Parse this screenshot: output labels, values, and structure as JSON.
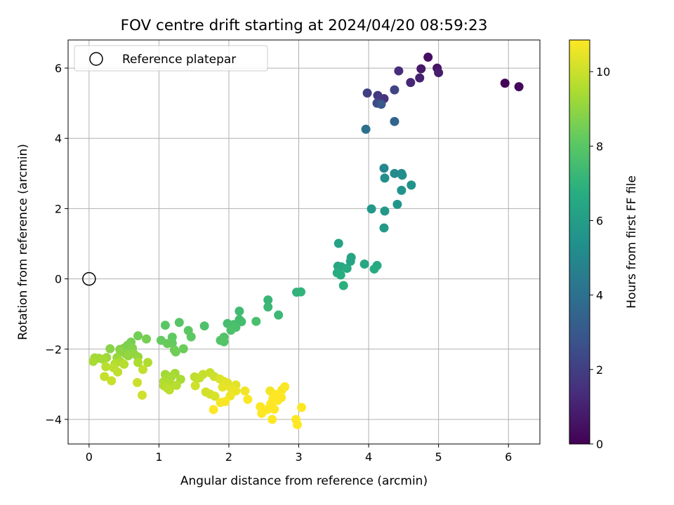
{
  "chart_data": {
    "type": "scatter",
    "title": "FOV centre drift starting at 2024/04/20 08:59:23",
    "xlabel": "Angular distance from reference (arcmin)",
    "ylabel": "Rotation from reference (arcmin)",
    "xlim": [
      -0.3,
      6.45
    ],
    "ylim": [
      -4.7,
      6.8
    ],
    "xticks": [
      0,
      1,
      2,
      3,
      4,
      5,
      6
    ],
    "yticks": [
      -4,
      -2,
      0,
      2,
      4,
      6
    ],
    "grid": true,
    "legend": {
      "location": "upper-left",
      "entries": [
        {
          "label": "Reference platepar",
          "marker": "open-circle"
        }
      ]
    },
    "reference_point": {
      "x": 0,
      "y": 0
    },
    "colorbar": {
      "label": "Hours from first FF file",
      "range": [
        0,
        10.85
      ],
      "ticks": [
        0,
        2,
        4,
        6,
        8,
        10
      ],
      "colormap": "viridis"
    },
    "points": [
      [
        5.95,
        5.57,
        0.1
      ],
      [
        6.15,
        5.47,
        0.25
      ],
      [
        4.85,
        6.31,
        0.45
      ],
      [
        4.98,
        6.0,
        0.6
      ],
      [
        4.75,
        5.98,
        0.75
      ],
      [
        5.0,
        5.87,
        0.9
      ],
      [
        4.73,
        5.72,
        1.05
      ],
      [
        4.6,
        5.59,
        1.2
      ],
      [
        4.43,
        5.92,
        1.4
      ],
      [
        4.22,
        5.13,
        1.6
      ],
      [
        4.13,
        5.22,
        1.8
      ],
      [
        3.98,
        5.29,
        2.0
      ],
      [
        4.37,
        5.38,
        2.2
      ],
      [
        4.12,
        5.0,
        2.4
      ],
      [
        4.18,
        4.97,
        3.0
      ],
      [
        4.37,
        4.48,
        3.5
      ],
      [
        3.96,
        4.26,
        4.0
      ],
      [
        4.22,
        3.15,
        5.0
      ],
      [
        4.37,
        3.0,
        5.1
      ],
      [
        4.47,
        3.0,
        5.2
      ],
      [
        4.48,
        2.95,
        5.3
      ],
      [
        4.23,
        2.87,
        5.4
      ],
      [
        4.61,
        2.67,
        5.5
      ],
      [
        4.47,
        2.52,
        5.55
      ],
      [
        4.41,
        2.12,
        5.6
      ],
      [
        4.04,
        1.99,
        5.7
      ],
      [
        4.23,
        1.93,
        5.75
      ],
      [
        4.22,
        1.45,
        5.85
      ],
      [
        3.57,
        1.01,
        6.2
      ],
      [
        3.75,
        0.61,
        6.3
      ],
      [
        3.74,
        0.5,
        6.35
      ],
      [
        3.94,
        0.42,
        6.4
      ],
      [
        3.56,
        0.36,
        6.45
      ],
      [
        3.61,
        0.34,
        6.5
      ],
      [
        4.12,
        0.38,
        6.55
      ],
      [
        3.69,
        0.3,
        6.6
      ],
      [
        4.08,
        0.28,
        6.65
      ],
      [
        3.55,
        0.17,
        6.7
      ],
      [
        3.6,
        0.11,
        6.75
      ],
      [
        3.64,
        -0.19,
        6.85
      ],
      [
        2.97,
        -0.38,
        7.0
      ],
      [
        3.03,
        -0.37,
        7.05
      ],
      [
        2.56,
        -0.6,
        7.2
      ],
      [
        2.56,
        -0.8,
        7.25
      ],
      [
        2.71,
        -1.03,
        7.3
      ],
      [
        2.15,
        -0.92,
        7.4
      ],
      [
        2.15,
        -1.16,
        7.45
      ],
      [
        2.18,
        -1.22,
        7.5
      ],
      [
        1.98,
        -1.27,
        7.55
      ],
      [
        2.07,
        -1.3,
        7.6
      ],
      [
        2.39,
        -1.21,
        7.62
      ],
      [
        2.1,
        -1.38,
        7.65
      ],
      [
        2.03,
        -1.46,
        7.7
      ],
      [
        1.65,
        -1.34,
        7.75
      ],
      [
        1.93,
        -1.66,
        7.8
      ],
      [
        1.88,
        -1.75,
        7.85
      ],
      [
        1.93,
        -1.79,
        7.9
      ],
      [
        1.29,
        -1.24,
        7.95
      ],
      [
        1.09,
        -1.32,
        8.0
      ],
      [
        1.42,
        -1.47,
        8.05
      ],
      [
        1.46,
        -1.65,
        8.1
      ],
      [
        1.19,
        -1.66,
        8.15
      ],
      [
        1.19,
        -1.83,
        8.2
      ],
      [
        1.03,
        -1.75,
        8.25
      ],
      [
        1.12,
        -1.84,
        8.3
      ],
      [
        1.35,
        -1.99,
        8.35
      ],
      [
        1.22,
        -2.02,
        8.4
      ],
      [
        1.24,
        -2.08,
        8.45
      ],
      [
        0.7,
        -1.62,
        8.5
      ],
      [
        0.82,
        -1.71,
        8.55
      ],
      [
        0.6,
        -1.8,
        8.6
      ],
      [
        0.55,
        -1.89,
        8.65
      ],
      [
        0.5,
        -1.97,
        8.7
      ],
      [
        0.62,
        -1.97,
        8.75
      ],
      [
        0.44,
        -2.01,
        8.8
      ],
      [
        0.3,
        -1.99,
        8.85
      ],
      [
        0.45,
        -2.07,
        8.9
      ],
      [
        0.52,
        -2.13,
        8.95
      ],
      [
        0.64,
        -2.13,
        9.0
      ],
      [
        0.56,
        -2.19,
        9.05
      ],
      [
        0.7,
        -2.22,
        9.1
      ],
      [
        0.4,
        -2.24,
        9.15
      ],
      [
        0.25,
        -2.24,
        9.2
      ],
      [
        0.14,
        -2.26,
        9.25
      ],
      [
        0.08,
        -2.25,
        9.3
      ],
      [
        0.2,
        -2.29,
        9.35
      ],
      [
        0.06,
        -2.35,
        9.4
      ],
      [
        0.45,
        -2.36,
        9.45
      ],
      [
        0.7,
        -2.38,
        9.5
      ],
      [
        0.84,
        -2.38,
        9.55
      ],
      [
        0.37,
        -2.42,
        9.6
      ],
      [
        0.5,
        -2.43,
        9.65
      ],
      [
        0.24,
        -2.5,
        9.7
      ],
      [
        0.35,
        -2.53,
        9.75
      ],
      [
        0.41,
        -2.65,
        9.8
      ],
      [
        0.77,
        -2.58,
        9.85
      ],
      [
        0.22,
        -2.78,
        9.9
      ],
      [
        0.32,
        -2.9,
        9.95
      ],
      [
        0.69,
        -2.95,
        10.0
      ],
      [
        0.76,
        -3.31,
        10.05
      ],
      [
        1.09,
        -2.72,
        9.3
      ],
      [
        1.23,
        -2.69,
        9.35
      ],
      [
        1.18,
        -2.78,
        9.4
      ],
      [
        1.31,
        -2.86,
        9.45
      ],
      [
        1.07,
        -2.92,
        9.5
      ],
      [
        1.16,
        -2.97,
        9.55
      ],
      [
        1.07,
        -3.04,
        9.6
      ],
      [
        1.25,
        -3.03,
        9.65
      ],
      [
        1.12,
        -3.11,
        9.7
      ],
      [
        1.15,
        -3.16,
        9.75
      ],
      [
        1.51,
        -2.79,
        9.8
      ],
      [
        1.58,
        -2.82,
        9.85
      ],
      [
        1.63,
        -2.72,
        9.9
      ],
      [
        1.73,
        -2.67,
        9.95
      ],
      [
        1.79,
        -2.78,
        10.0
      ],
      [
        1.52,
        -3.04,
        10.05
      ],
      [
        1.67,
        -3.22,
        10.1
      ],
      [
        1.73,
        -3.28,
        10.15
      ],
      [
        1.8,
        -3.34,
        10.2
      ],
      [
        1.87,
        -2.85,
        10.25
      ],
      [
        1.93,
        -2.92,
        10.3
      ],
      [
        1.98,
        -2.96,
        10.35
      ],
      [
        2.1,
        -3.02,
        10.4
      ],
      [
        1.91,
        -3.08,
        10.45
      ],
      [
        2.03,
        -3.11,
        10.5
      ],
      [
        2.1,
        -3.19,
        10.55
      ],
      [
        2.02,
        -3.33,
        10.6
      ],
      [
        2.23,
        -3.19,
        10.65
      ],
      [
        1.88,
        -3.52,
        10.7
      ],
      [
        1.95,
        -3.49,
        10.75
      ],
      [
        2.27,
        -3.43,
        10.8
      ],
      [
        1.78,
        -3.72,
        10.85
      ],
      [
        2.59,
        -3.19,
        10.7
      ],
      [
        2.76,
        -3.16,
        10.75
      ],
      [
        2.8,
        -3.07,
        10.8
      ],
      [
        2.67,
        -3.29,
        10.85
      ],
      [
        2.63,
        -3.41,
        10.85
      ],
      [
        2.7,
        -3.46,
        10.85
      ],
      [
        2.6,
        -3.56,
        10.85
      ],
      [
        2.75,
        -3.38,
        10.85
      ],
      [
        2.45,
        -3.64,
        10.85
      ],
      [
        2.55,
        -3.72,
        10.85
      ],
      [
        2.47,
        -3.83,
        10.85
      ],
      [
        2.65,
        -3.71,
        10.85
      ],
      [
        2.62,
        -4.0,
        10.85
      ],
      [
        2.96,
        -4.0,
        10.85
      ],
      [
        2.98,
        -4.15,
        10.85
      ],
      [
        3.04,
        -3.66,
        10.85
      ]
    ]
  }
}
